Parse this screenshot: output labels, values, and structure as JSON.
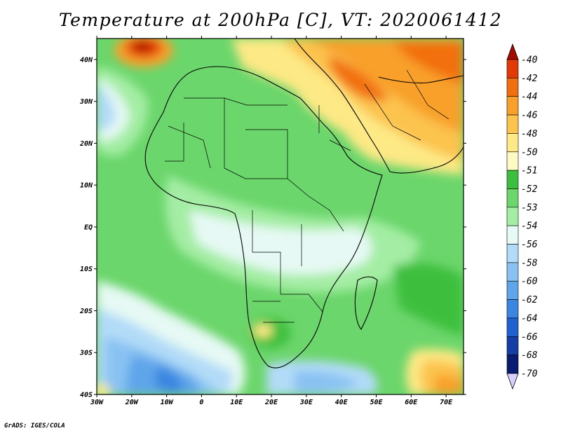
{
  "title": "Temperature at 200hPa [C], VT: 2020061412",
  "credit": "GrADS: IGES/COLA",
  "map": {
    "lat_range": [
      -40,
      45
    ],
    "lon_range": [
      -30,
      75
    ],
    "lat_ticks": [
      {
        "value": 40,
        "label": "40N"
      },
      {
        "value": 30,
        "label": "30N"
      },
      {
        "value": 20,
        "label": "20N"
      },
      {
        "value": 10,
        "label": "10N"
      },
      {
        "value": 0,
        "label": "EQ"
      },
      {
        "value": -10,
        "label": "10S"
      },
      {
        "value": -20,
        "label": "20S"
      },
      {
        "value": -30,
        "label": "30S"
      },
      {
        "value": -40,
        "label": "40S"
      }
    ],
    "lon_ticks": [
      {
        "value": -30,
        "label": "30W"
      },
      {
        "value": -20,
        "label": "20W"
      },
      {
        "value": -10,
        "label": "10W"
      },
      {
        "value": 0,
        "label": "0"
      },
      {
        "value": 10,
        "label": "10E"
      },
      {
        "value": 20,
        "label": "20E"
      },
      {
        "value": 30,
        "label": "30E"
      },
      {
        "value": 40,
        "label": "40E"
      },
      {
        "value": 50,
        "label": "50E"
      },
      {
        "value": 60,
        "label": "60E"
      },
      {
        "value": 70,
        "label": "70E"
      }
    ]
  },
  "colorbar": {
    "levels": [
      {
        "label": "-40",
        "color": "#a50a00"
      },
      {
        "label": "-42",
        "color": "#e23a06"
      },
      {
        "label": "-44",
        "color": "#f26f10"
      },
      {
        "label": "-46",
        "color": "#f8a02b"
      },
      {
        "label": "-48",
        "color": "#fcc34e"
      },
      {
        "label": "-50",
        "color": "#fde985"
      },
      {
        "label": "-51",
        "color": "#fbfbc3"
      },
      {
        "label": "-52",
        "color": "#3cbf3c"
      },
      {
        "label": "-53",
        "color": "#6bd66b"
      },
      {
        "label": "-54",
        "color": "#a4eda4"
      },
      {
        "label": "-56",
        "color": "#e6f9f4"
      },
      {
        "label": "-58",
        "color": "#b2dbf8"
      },
      {
        "label": "-60",
        "color": "#89c2f2"
      },
      {
        "label": "-62",
        "color": "#5ea5ea"
      },
      {
        "label": "-64",
        "color": "#3b86e0"
      },
      {
        "label": "-66",
        "color": "#1f62cf"
      },
      {
        "label": "-68",
        "color": "#143da6"
      },
      {
        "label": "-70",
        "color": "#0a1c70"
      }
    ],
    "below_color": "#d8d0ff"
  }
}
